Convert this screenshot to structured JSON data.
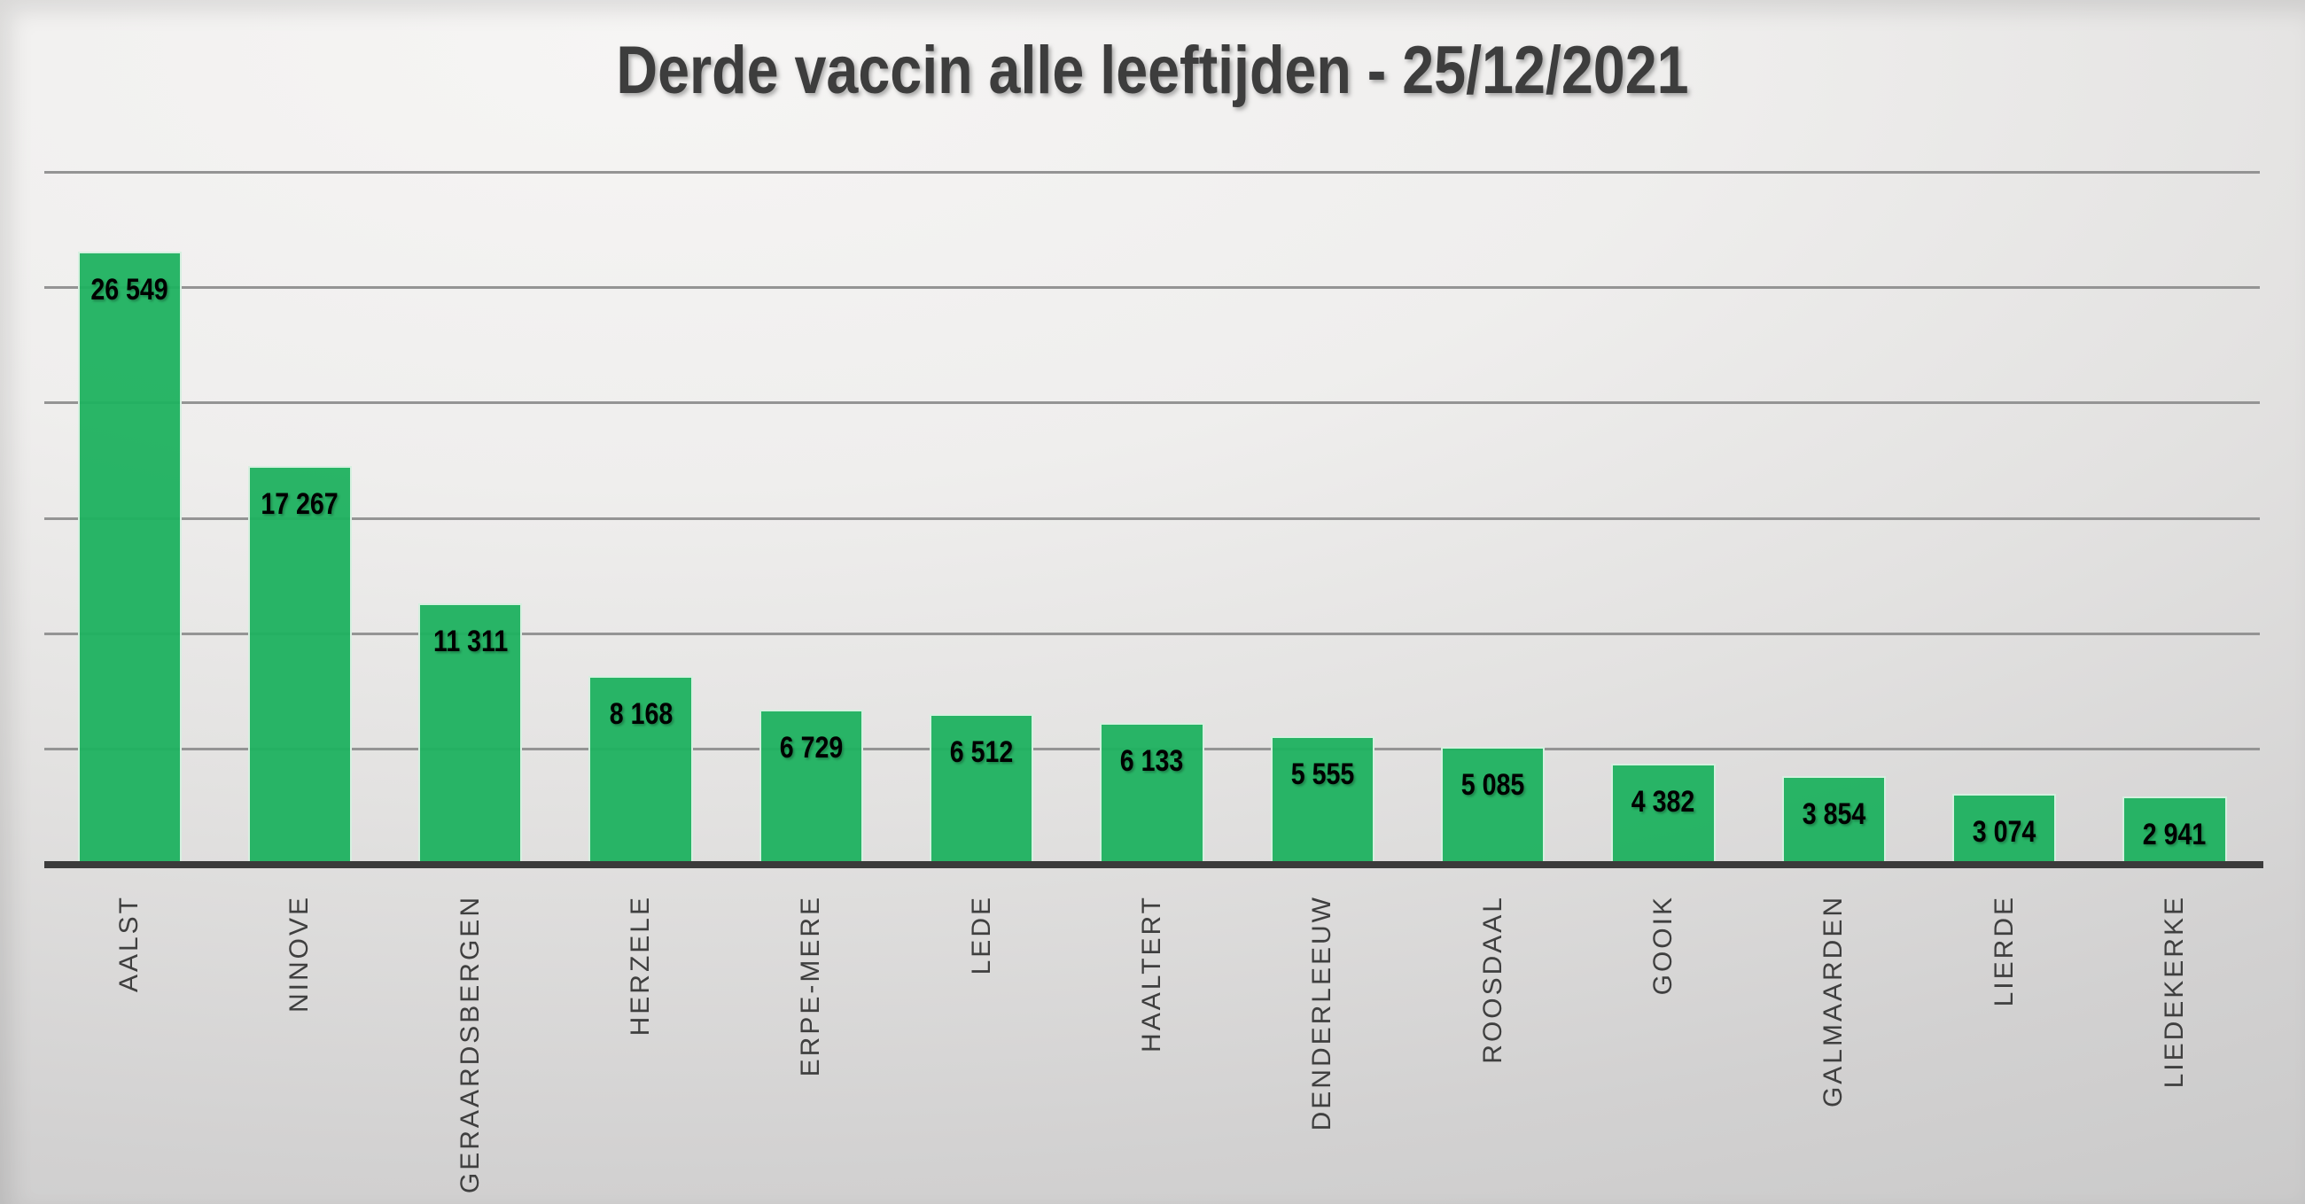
{
  "chart_data": {
    "type": "bar",
    "title": "Derde vaccin alle leeftijden - 25/12/2021",
    "categories": [
      "AALST",
      "NINOVE",
      "GERAARDSBERGEN",
      "HERZELE",
      "ERPE-MERE",
      "LEDE",
      "HAALTERT",
      "DENDERLEEUW",
      "ROOSDAAL",
      "GOOIK",
      "GALMAARDEN",
      "LIERDE",
      "LIEDEKERKE"
    ],
    "values": [
      26549,
      17267,
      11311,
      8168,
      6729,
      6512,
      6133,
      5555,
      5085,
      4382,
      3854,
      3074,
      2941
    ],
    "value_labels": [
      "26 549",
      "17 267",
      "11 311",
      "8 168",
      "6 729",
      "6 512",
      "6 133",
      "5 555",
      "5 085",
      "4 382",
      "3 854",
      "3 074",
      "2 941"
    ],
    "xlabel": "",
    "ylabel": "",
    "ylim": [
      0,
      30000
    ],
    "gridline_step": 5000,
    "grid": true,
    "legend": "none",
    "data_label_position": "inside-end",
    "category_label_rotation": "90-ccw",
    "colors": {
      "bar": "#1eb15f",
      "bar_outline": "#f0f7f2",
      "axis_line": "#3b3b3b",
      "gridline": "#949494",
      "title": "#3d3d3d",
      "data_label": "#000000",
      "category_label": "#3f3f3f",
      "background_light": "#f6f5f4",
      "background_dark": "#c3c3c3"
    }
  }
}
